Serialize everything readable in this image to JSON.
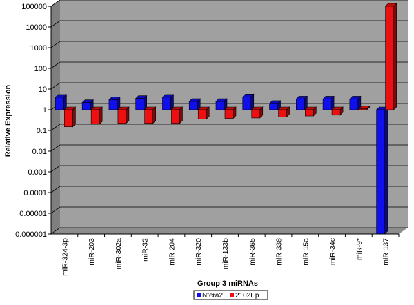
{
  "chart_data": {
    "type": "bar",
    "title": "",
    "xlabel": "Group 3 miRNAs",
    "ylabel": "Relative Expression",
    "yscale": "log",
    "ylim": [
      1e-06,
      100000
    ],
    "yticks": [
      "100000",
      "10000",
      "1000",
      "100",
      "10",
      "1",
      "0.1",
      "0.01",
      "0.001",
      "0.0001",
      "0.00001",
      "0.000001"
    ],
    "grid": true,
    "legend": "bottom",
    "categories": [
      "miR-324-3p",
      "miR-203",
      "miR-302a",
      "miR-32",
      "miR-204",
      "miR-320",
      "miR-133b",
      "miR-365",
      "miR-338",
      "miR-15a",
      "miR-34c",
      "miR-9*",
      "miR-137"
    ],
    "series": [
      {
        "name": "Ntera2",
        "color": "#1010ee",
        "values": [
          4,
          2.2,
          3,
          3.5,
          4,
          2.5,
          2.5,
          4.2,
          2,
          3.3,
          3.3,
          3.3,
          1e-06
        ]
      },
      {
        "name": "2102Ep",
        "color": "#ee1010",
        "values": [
          0.15,
          0.2,
          0.22,
          0.22,
          0.22,
          0.35,
          0.38,
          0.4,
          0.45,
          0.5,
          0.55,
          1.1,
          100000
        ]
      }
    ]
  }
}
